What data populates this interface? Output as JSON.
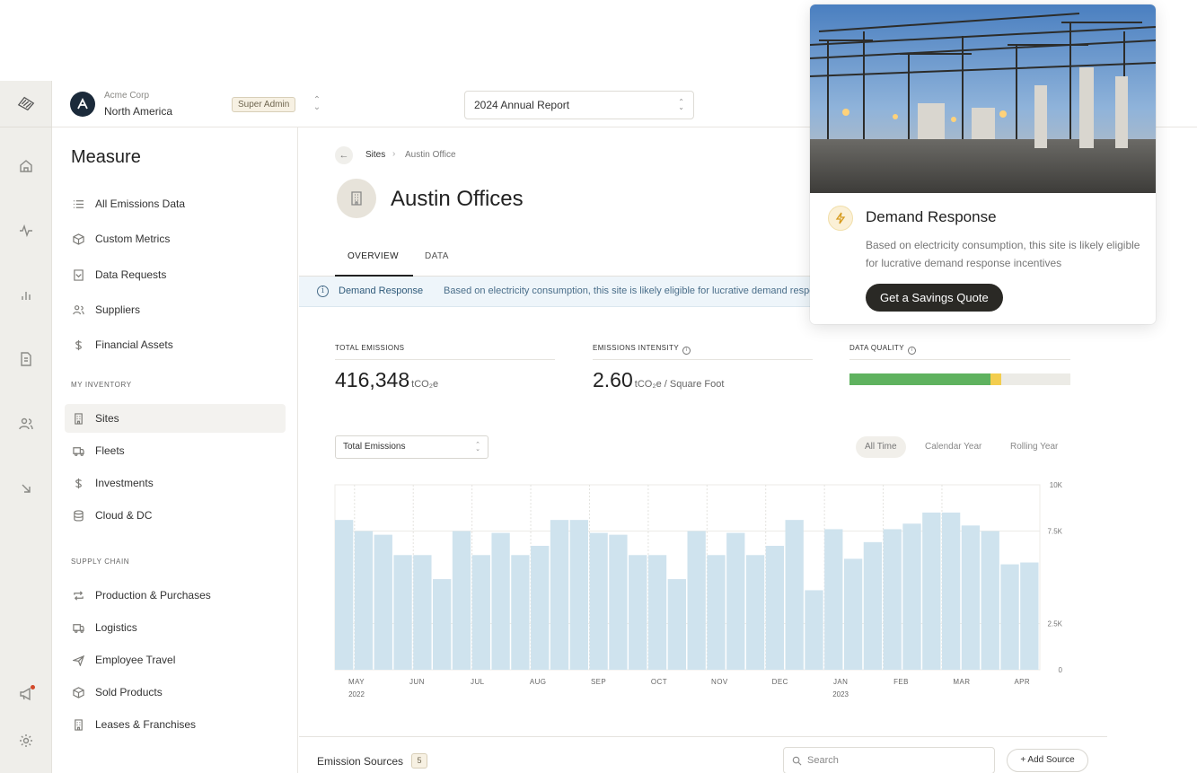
{
  "app": {
    "org_name": "Acme Corp",
    "org_region": "North America",
    "role": "Super Admin",
    "report": "2024 Annual Report"
  },
  "rail_icons": [
    "logo-icon",
    "home-icon",
    "activity-icon",
    "bar-chart-icon",
    "document-icon",
    "users-icon",
    "arrow-down-right-icon",
    "megaphone-icon",
    "gear-icon"
  ],
  "nav": {
    "title": "Measure",
    "measure_items": [
      {
        "label": "All Emissions Data",
        "icon": "list-icon"
      },
      {
        "label": "Custom Metrics",
        "icon": "cube-icon"
      },
      {
        "label": "Data Requests",
        "icon": "inbox-icon"
      },
      {
        "label": "Suppliers",
        "icon": "users-icon"
      },
      {
        "label": "Financial Assets",
        "icon": "dollar-icon"
      }
    ],
    "inventory_heading": "MY INVENTORY",
    "inventory_items": [
      {
        "label": "Sites",
        "icon": "building-icon",
        "active": true
      },
      {
        "label": "Fleets",
        "icon": "truck-icon"
      },
      {
        "label": "Investments",
        "icon": "dollar-icon"
      },
      {
        "label": "Cloud & DC",
        "icon": "database-icon"
      }
    ],
    "supply_heading": "SUPPLY CHAIN",
    "supply_items": [
      {
        "label": "Production & Purchases",
        "icon": "repeat-icon"
      },
      {
        "label": "Logistics",
        "icon": "truck-icon"
      },
      {
        "label": "Employee Travel",
        "icon": "plane-icon"
      },
      {
        "label": "Sold Products",
        "icon": "cube-icon"
      },
      {
        "label": "Leases & Franchises",
        "icon": "building-icon"
      }
    ]
  },
  "main": {
    "breadcrumb": [
      "Sites",
      "Austin Office"
    ],
    "title": "Austin Offices",
    "tabs": [
      "OVERVIEW",
      "DATA"
    ],
    "banner": {
      "title": "Demand Response",
      "text": "Based on electricity consumption, this site is likely eligible for lucrative demand response incentives"
    },
    "metrics": {
      "total_label": "TOTAL EMISSIONS",
      "total_value": "416,348",
      "total_unit": "tCO₂e",
      "intensity_label": "EMISSIONS INTENSITY",
      "intensity_value": "2.60",
      "intensity_unit": "tCO₂e / Square Foot",
      "quality_label": "DATA QUALITY",
      "quality_good_fraction": 0.64,
      "quality_mid_fraction": 0.045
    },
    "metric_select": "Total Emissions",
    "ranges": [
      "All Time",
      "Calendar Year",
      "Rolling Year"
    ],
    "sources_title": "Emission Sources",
    "sources_count": "5",
    "search_placeholder": "Search",
    "add_source": "Add Source"
  },
  "promo": {
    "title": "Demand Response",
    "text": "Based on electricity consumption, this site is likely eligible for lucrative demand response incentives",
    "cta": "Get a Savings Quote"
  },
  "colors": {
    "bar": "#cfe3ee",
    "dq_good": "#5fb25f",
    "dq_mid": "#f3cd4e",
    "cta_bg": "#2a2925"
  },
  "chart_data": {
    "type": "bar",
    "values": [
      8100,
      7500,
      7300,
      6200,
      6200,
      4900,
      7500,
      6200,
      7400,
      6200,
      6700,
      8100,
      8100,
      7400,
      7300,
      6200,
      6200,
      4900,
      7500,
      6200,
      7400,
      6200,
      6700,
      8100,
      4300,
      7600,
      6000,
      6900,
      7600,
      7900,
      8500,
      8500,
      7800,
      7500,
      5700,
      5800
    ],
    "x_tick_labels": [
      "MAY",
      "JUN",
      "JUL",
      "AUG",
      "SEP",
      "OCT",
      "NOV",
      "DEC",
      "JAN",
      "FEB",
      "MAR",
      "APR"
    ],
    "x_year_labels": [
      {
        "tick": 0,
        "label": "2022"
      },
      {
        "tick": 8,
        "label": "2023"
      }
    ],
    "y_ticks": [
      "0",
      "2.5K",
      "7.5K",
      "10K"
    ],
    "y_tick_values": [
      0,
      2500,
      7500,
      10000
    ],
    "ylim": [
      0,
      10000
    ],
    "grid": true
  }
}
